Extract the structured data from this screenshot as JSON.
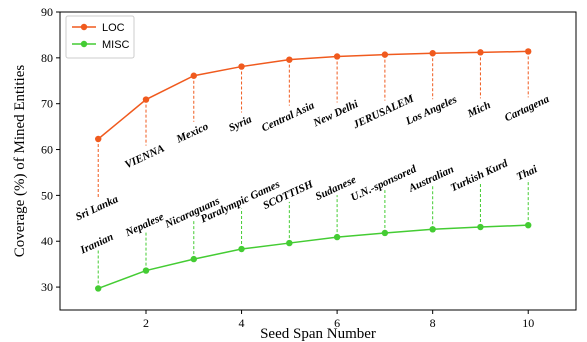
{
  "chart_data": {
    "type": "line",
    "title": "",
    "xlabel": "Seed Span Number",
    "ylabel": "Coverage (%) of Mined Entities",
    "xlim": [
      0.2,
      11.0
    ],
    "ylim": [
      25,
      90
    ],
    "x_ticks": [
      2,
      4,
      6,
      8,
      10
    ],
    "y_ticks": [
      30,
      40,
      50,
      60,
      70,
      80,
      90
    ],
    "grid": false,
    "legend_position": "top-left",
    "x": [
      1,
      2,
      3,
      4,
      5,
      6,
      7,
      8,
      9,
      10
    ],
    "series": [
      {
        "name": "LOC",
        "color": "#f05a1e",
        "values": [
          62.3,
          70.9,
          76.1,
          78.1,
          79.6,
          80.3,
          80.7,
          81.0,
          81.2,
          81.4
        ],
        "annotations": [
          "Sri Lanka",
          "VIENNA",
          "Mexico",
          "Syria",
          "Central Asia",
          "New Delhi",
          "JERUSALEM",
          "Los Angeles",
          "Mich",
          "Cartagena"
        ]
      },
      {
        "name": "MISC",
        "color": "#44cc33",
        "values": [
          29.7,
          33.6,
          36.1,
          38.3,
          39.6,
          40.9,
          41.8,
          42.6,
          43.1,
          43.5
        ],
        "annotations": [
          "Iranian",
          "Nepalese",
          "Nicaraguans",
          "Paralympic Games",
          "SCOTTISH",
          "Sudanese",
          "U.N.-sponsored",
          "Australian",
          "Turkish Kurd",
          "Thai"
        ]
      }
    ]
  }
}
